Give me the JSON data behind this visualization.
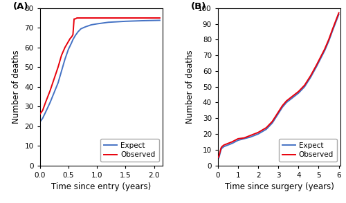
{
  "panel_A": {
    "label": "(A)",
    "xlabel": "Time since entry (years)",
    "ylabel": "Number of deaths",
    "xlim": [
      0,
      2.15
    ],
    "ylim": [
      0,
      80
    ],
    "xticks": [
      0,
      0.5,
      1.0,
      1.5,
      2.0
    ],
    "yticks": [
      0,
      10,
      20,
      30,
      40,
      50,
      60,
      70,
      80
    ],
    "expect_x": [
      0,
      0.05,
      0.1,
      0.18,
      0.25,
      0.32,
      0.38,
      0.44,
      0.5,
      0.55,
      0.58,
      0.62,
      0.67,
      0.72,
      0.8,
      0.9,
      1.0,
      1.2,
      1.5,
      1.8,
      2.1
    ],
    "expect_y": [
      22,
      24,
      27,
      32,
      37,
      42,
      48,
      54,
      59,
      62,
      64,
      66,
      68,
      69.5,
      70.5,
      71.5,
      72,
      72.8,
      73.3,
      73.6,
      73.8
    ],
    "observed_x": [
      0,
      0.05,
      0.1,
      0.18,
      0.25,
      0.32,
      0.38,
      0.44,
      0.5,
      0.53,
      0.56,
      0.58,
      0.6,
      0.62,
      0.65,
      0.68,
      0.72,
      0.8,
      1.0,
      1.3,
      1.6,
      2.0,
      2.1
    ],
    "observed_y": [
      26,
      28,
      32,
      38,
      44,
      50,
      56,
      60,
      63,
      64.5,
      65.5,
      66.5,
      74.5,
      74.5,
      75,
      75,
      75,
      75,
      75,
      75,
      75,
      75,
      75
    ],
    "expect_color": "#4472C4",
    "observed_color": "#E8000B"
  },
  "panel_B": {
    "label": "(B)",
    "xlabel": "Time since surgery (years)",
    "ylabel": "Number of deaths",
    "xlim": [
      0,
      6.1
    ],
    "ylim": [
      0,
      100
    ],
    "xticks": [
      0,
      1,
      2,
      3,
      4,
      5,
      6
    ],
    "yticks": [
      0,
      10,
      20,
      30,
      40,
      50,
      60,
      70,
      80,
      90,
      100
    ],
    "expect_x": [
      0,
      0.05,
      0.08,
      0.12,
      0.15,
      0.2,
      0.3,
      0.4,
      0.5,
      0.7,
      1.0,
      1.3,
      1.6,
      2.0,
      2.4,
      2.7,
      3.0,
      3.2,
      3.4,
      3.6,
      3.8,
      4.0,
      4.3,
      4.6,
      4.9,
      5.1,
      5.3,
      5.5,
      5.7,
      5.85,
      6.0
    ],
    "expect_y": [
      4,
      5,
      6.5,
      8.5,
      10,
      11,
      12,
      12.5,
      13,
      14,
      16,
      17,
      18,
      20,
      23,
      27,
      33,
      37,
      40,
      42,
      44,
      46,
      50,
      56,
      63,
      68,
      73,
      79,
      86,
      91,
      96
    ],
    "observed_x": [
      0,
      0.05,
      0.08,
      0.12,
      0.15,
      0.2,
      0.3,
      0.4,
      0.5,
      0.7,
      1.0,
      1.3,
      1.6,
      2.0,
      2.4,
      2.7,
      3.0,
      3.2,
      3.4,
      3.6,
      3.8,
      4.0,
      4.3,
      4.6,
      4.9,
      5.1,
      5.3,
      5.5,
      5.7,
      5.85,
      6.0
    ],
    "observed_y": [
      5,
      6,
      7.5,
      9.5,
      11,
      12,
      13,
      13.5,
      14,
      15,
      17,
      17.5,
      19,
      21,
      24,
      28,
      34,
      38,
      41,
      43,
      45,
      47,
      51,
      57,
      64,
      69,
      74,
      80,
      87,
      92,
      97
    ],
    "expect_color": "#4472C4",
    "observed_color": "#E8000B"
  },
  "linewidth": 1.4,
  "tick_fontsize": 7.5,
  "label_fontsize": 8.5,
  "legend_fontsize": 7.5
}
